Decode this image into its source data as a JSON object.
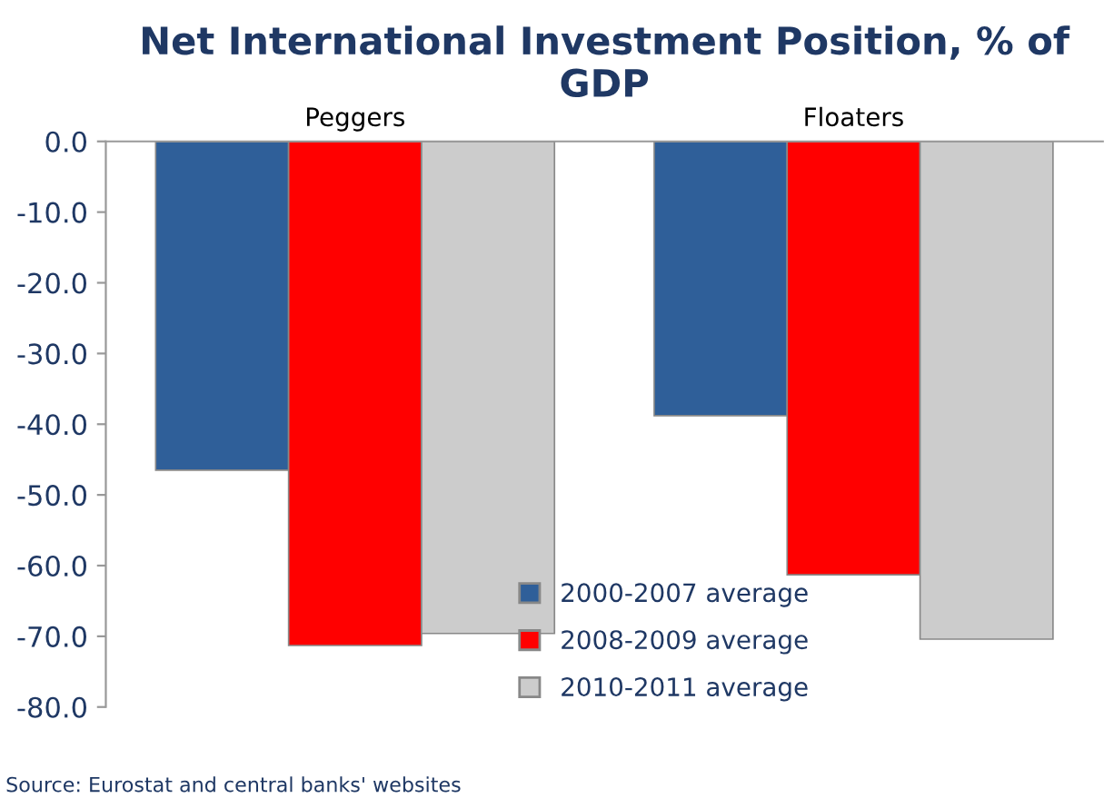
{
  "chart_data": {
    "type": "bar",
    "title": "Net International Investment Position, % of GDP",
    "categories": [
      "Peggers",
      "Floaters"
    ],
    "series": [
      {
        "name": "2000-2007 average",
        "color": "#2f5f99",
        "values": [
          -46.5,
          -38.8
        ]
      },
      {
        "name": "2008-2009 average",
        "color": "#ff0000",
        "values": [
          -71.3,
          -61.3
        ]
      },
      {
        "name": "2010-2011 average",
        "color": "#cccccc",
        "values": [
          -69.6,
          -70.4
        ]
      }
    ],
    "ylim": [
      -80,
      0
    ],
    "yticks": [
      {
        "value": 0,
        "label": "0.0"
      },
      {
        "value": -10,
        "label": "-10.0"
      },
      {
        "value": -20,
        "label": "-20.0"
      },
      {
        "value": -30,
        "label": "-30.0"
      },
      {
        "value": -40,
        "label": "-40.0"
      },
      {
        "value": -50,
        "label": "-50.0"
      },
      {
        "value": -60,
        "label": "-60.0"
      },
      {
        "value": -70,
        "label": "-70.0"
      },
      {
        "value": -80,
        "label": "-80.0"
      }
    ],
    "grid": false,
    "legend": "bottom right",
    "annotations": [
      "Source: Eurostat and central banks' websites"
    ]
  }
}
